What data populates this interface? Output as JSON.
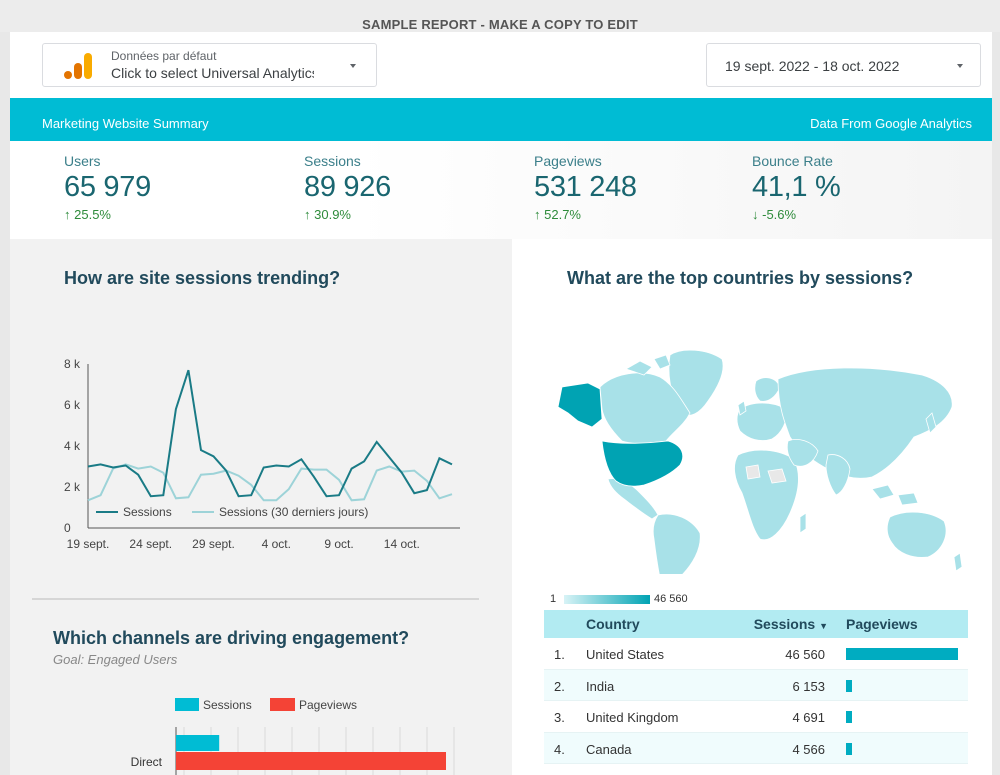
{
  "banner_top": "SAMPLE REPORT - MAKE A COPY TO EDIT",
  "datasource": {
    "subtitle": "Données par défaut",
    "label": "Click to select Universal Analytics"
  },
  "date_range": {
    "label": "19 sept. 2022 - 18 oct. 2022"
  },
  "header": {
    "left": "Marketing Website Summary",
    "right": "Data From Google Analytics"
  },
  "kpis": [
    {
      "label": "Users",
      "value": "65 979",
      "delta": "25.5%",
      "direction": "up"
    },
    {
      "label": "Sessions",
      "value": "89 926",
      "delta": "30.9%",
      "direction": "up"
    },
    {
      "label": "Pageviews",
      "value": "531 248",
      "delta": "52.7%",
      "direction": "up"
    },
    {
      "label": "Bounce Rate",
      "value": "41,1 %",
      "delta": "-5.6%",
      "direction": "down"
    }
  ],
  "colors": {
    "accent": "#00bcd4",
    "dark_teal": "#1a7b86",
    "light_teal": "#9dd3d8",
    "pageviews": "#f44336",
    "positive": "#2e8b3b"
  },
  "trend": {
    "title": "How are site sessions trending?",
    "legend": [
      "Sessions",
      "Sessions (30 derniers jours)"
    ],
    "chart_data": {
      "type": "line",
      "x": [
        "19 sept.",
        "20 sept.",
        "21 sept.",
        "22 sept.",
        "23 sept.",
        "24 sept.",
        "25 sept.",
        "26 sept.",
        "27 sept.",
        "28 sept.",
        "29 sept.",
        "30 sept.",
        "1 oct.",
        "2 oct.",
        "3 oct.",
        "4 oct.",
        "5 oct.",
        "6 oct.",
        "7 oct.",
        "8 oct.",
        "9 oct.",
        "10 oct.",
        "11 oct.",
        "12 oct.",
        "13 oct.",
        "14 oct.",
        "15 oct.",
        "16 oct.",
        "17 oct.",
        "18 oct."
      ],
      "x_ticks": [
        "19 sept.",
        "24 sept.",
        "29 sept.",
        "4 oct.",
        "9 oct.",
        "14 oct."
      ],
      "y_ticks": [
        "0",
        "2 k",
        "4 k",
        "6 k",
        "8 k"
      ],
      "ylim": [
        0,
        8000
      ],
      "series": [
        {
          "name": "Sessions",
          "values": [
            3000,
            3100,
            2950,
            3050,
            2600,
            1550,
            1600,
            5800,
            7700,
            3800,
            3500,
            2800,
            1550,
            1600,
            2950,
            3050,
            3000,
            3350,
            2500,
            1550,
            1600,
            2900,
            3250,
            4200,
            3450,
            2700,
            1700,
            1850,
            3400,
            3100
          ]
        },
        {
          "name": "Sessions (30 derniers jours)",
          "values": [
            1350,
            1600,
            2900,
            3100,
            2900,
            3000,
            2700,
            1450,
            1500,
            2600,
            2650,
            2800,
            2550,
            2100,
            1350,
            1350,
            1900,
            2900,
            2850,
            2850,
            2350,
            1350,
            1400,
            2800,
            3000,
            2750,
            2800,
            2300,
            1450,
            1650
          ]
        }
      ]
    }
  },
  "channels": {
    "title": "Which channels are driving engagement?",
    "subtitle": "Goal: Engaged Users",
    "legend": [
      "Sessions",
      "Pageviews"
    ],
    "chart_data": {
      "type": "bar",
      "categories": [
        "Direct"
      ],
      "series": [
        {
          "name": "Sessions",
          "values": [
            0.16
          ]
        },
        {
          "name": "Pageviews",
          "values": [
            1.0
          ]
        }
      ]
    }
  },
  "countries": {
    "title": "What are the top countries by sessions?",
    "scale_min": "1",
    "scale_max": "46 560",
    "table": {
      "headers": {
        "country": "Country",
        "sessions": "Sessions",
        "pageviews": "Pageviews"
      },
      "rows": [
        {
          "idx": "1.",
          "country": "United States",
          "sessions": "46 560",
          "pageviews_share": 1.0
        },
        {
          "idx": "2.",
          "country": "India",
          "sessions": "6 153",
          "pageviews_share": 0.05
        },
        {
          "idx": "3.",
          "country": "United Kingdom",
          "sessions": "4 691",
          "pageviews_share": 0.05
        },
        {
          "idx": "4.",
          "country": "Canada",
          "sessions": "4 566",
          "pageviews_share": 0.05
        }
      ]
    }
  }
}
